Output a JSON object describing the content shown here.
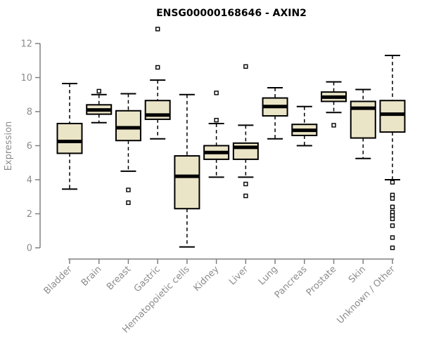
{
  "chart_data": {
    "type": "boxplot",
    "title": "ENSG00000168646 - AXIN2",
    "xlabel": "",
    "ylabel": "Expression",
    "ylim": [
      0,
      12.9
    ],
    "yticks": [
      0,
      2,
      4,
      6,
      8,
      10,
      12
    ],
    "grid": false,
    "legend": null,
    "orientation": "vertical",
    "x_tick_rotation_deg": 45,
    "categories": [
      "Bladder",
      "Brain",
      "Breast",
      "Gastric",
      "Hematopoietic cells",
      "Kidney",
      "Liver",
      "Lung",
      "Pancreas",
      "Prostate",
      "Skin",
      "Unknown / Other"
    ],
    "series": [
      {
        "name": "Bladder",
        "whisker_low": 3.45,
        "q1": 5.55,
        "median": 6.25,
        "q3": 7.3,
        "whisker_high": 9.65,
        "outliers": []
      },
      {
        "name": "Brain",
        "whisker_low": 7.35,
        "q1": 7.85,
        "median": 8.1,
        "q3": 8.4,
        "whisker_high": 9.0,
        "outliers": [
          9.2
        ]
      },
      {
        "name": "Breast",
        "whisker_low": 4.5,
        "q1": 6.3,
        "median": 7.05,
        "q3": 8.05,
        "whisker_high": 9.05,
        "outliers": [
          3.4,
          2.65
        ]
      },
      {
        "name": "Gastric",
        "whisker_low": 6.4,
        "q1": 7.55,
        "median": 7.8,
        "q3": 8.65,
        "whisker_high": 9.85,
        "outliers": [
          12.85,
          10.6
        ]
      },
      {
        "name": "Hematopoietic cells",
        "whisker_low": 0.05,
        "q1": 2.3,
        "median": 4.2,
        "q3": 5.4,
        "whisker_high": 9.0,
        "outliers": []
      },
      {
        "name": "Kidney",
        "whisker_low": 4.15,
        "q1": 5.2,
        "median": 5.6,
        "q3": 6.0,
        "whisker_high": 7.3,
        "outliers": [
          9.1,
          7.5
        ]
      },
      {
        "name": "Liver",
        "whisker_low": 4.15,
        "q1": 5.2,
        "median": 5.9,
        "q3": 6.15,
        "whisker_high": 7.2,
        "outliers": [
          10.65,
          3.75,
          3.05
        ]
      },
      {
        "name": "Lung",
        "whisker_low": 6.4,
        "q1": 7.75,
        "median": 8.3,
        "q3": 8.8,
        "whisker_high": 9.4,
        "outliers": []
      },
      {
        "name": "Pancreas",
        "whisker_low": 6.0,
        "q1": 6.6,
        "median": 6.9,
        "q3": 7.25,
        "whisker_high": 8.3,
        "outliers": []
      },
      {
        "name": "Prostate",
        "whisker_low": 7.95,
        "q1": 8.6,
        "median": 8.85,
        "q3": 9.15,
        "whisker_high": 9.75,
        "outliers": [
          7.2
        ]
      },
      {
        "name": "Skin",
        "whisker_low": 5.25,
        "q1": 6.45,
        "median": 8.2,
        "q3": 8.6,
        "whisker_high": 9.3,
        "outliers": []
      },
      {
        "name": "Unknown / Other",
        "whisker_low": 4.0,
        "q1": 6.8,
        "median": 7.85,
        "q3": 8.65,
        "whisker_high": 11.3,
        "outliers": [
          3.85,
          3.1,
          2.9,
          2.4,
          2.1,
          1.9,
          1.7,
          1.3,
          0.6,
          0.0
        ]
      }
    ],
    "colors": {
      "box_fill": "#EBE5C7",
      "box_border": "#000000",
      "median": "#000000",
      "whisker": "#000000",
      "outlier_stroke": "#000000",
      "outlier_fill": "#FFFFFF",
      "axis_line": "#808080",
      "axis_text": "#8C8C8C",
      "title": "#000000",
      "background": "#FFFFFF"
    }
  }
}
